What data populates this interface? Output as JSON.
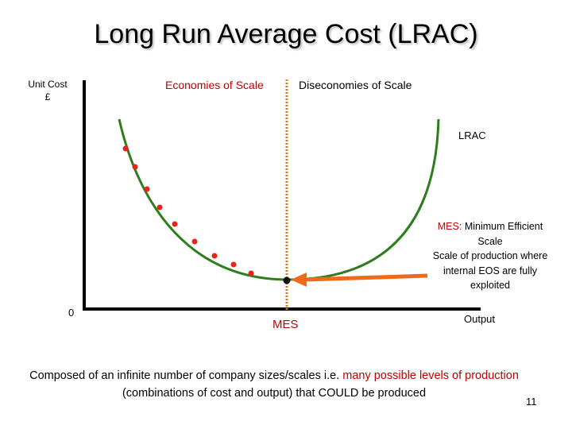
{
  "slide": {
    "title": "Long Run Average Cost (LRAC)",
    "page_number": "11"
  },
  "axes": {
    "y_label_line1": "Unit Cost",
    "y_label_line2": "£",
    "origin": "0",
    "x_label": "Output",
    "mes_label": "MES"
  },
  "regions": {
    "economies": "Economies of Scale",
    "diseconomies": "Diseconomies of Scale"
  },
  "curve": {
    "label": "LRAC",
    "color": "#2e7d1e",
    "point_color": "#e8231c",
    "divider_color": "#c9831f",
    "arrow_color": "#f06a1c"
  },
  "callout": {
    "mes_prefix": "MES:",
    "mes_title": "Minimum Efficient Scale",
    "mes_description": "Scale of production where internal EOS are fully exploited"
  },
  "footer": {
    "part1": "Composed of an infinite number of company sizes/scales i.e.",
    "highlight": "many possible levels of production",
    "part2": "(combinations of cost and output) that COULD be produced"
  }
}
